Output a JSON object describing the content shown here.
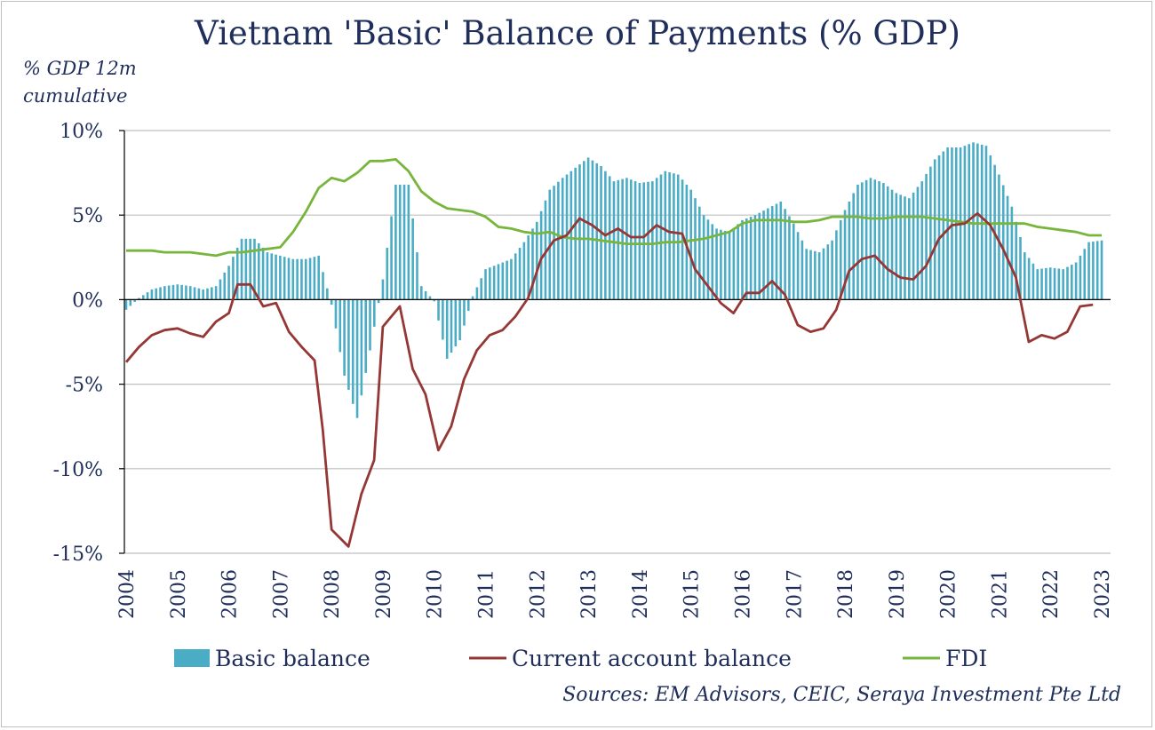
{
  "chart_data": {
    "type": "bar+line",
    "title": "Vietnam 'Basic' Balance of Payments (% GDP)",
    "ylabel": "% GDP 12m cumulative",
    "ylim": [
      -15,
      10
    ],
    "yticks": [
      10,
      5,
      0,
      -5,
      -10,
      -15
    ],
    "ytick_labels": [
      "10%",
      "5%",
      "0%",
      "-5%",
      "-10%",
      "-15%"
    ],
    "x_range": [
      2004.0,
      2023.0
    ],
    "xticks": [
      "2004",
      "2005",
      "2006",
      "2007",
      "2008",
      "2009",
      "2010",
      "2011",
      "2012",
      "2013",
      "2014",
      "2015",
      "2016",
      "2017",
      "2018",
      "2019",
      "2020",
      "2021",
      "2022",
      "2023"
    ],
    "grid": "horizontal",
    "legend_position": "bottom",
    "source": "Sources: EM Advisors, CEIC, Seraya Investment Pte Ltd",
    "series": [
      {
        "name": "Basic balance",
        "kind": "bar",
        "color": "#4bacc6",
        "points": [
          [
            2004.0,
            -0.6
          ],
          [
            2004.25,
            0.1
          ],
          [
            2004.5,
            0.6
          ],
          [
            2004.75,
            0.8
          ],
          [
            2005.0,
            0.9
          ],
          [
            2005.25,
            0.8
          ],
          [
            2005.5,
            0.6
          ],
          [
            2005.75,
            0.8
          ],
          [
            2006.0,
            2.0
          ],
          [
            2006.25,
            3.6
          ],
          [
            2006.5,
            3.6
          ],
          [
            2006.75,
            2.8
          ],
          [
            2007.0,
            2.6
          ],
          [
            2007.25,
            2.4
          ],
          [
            2007.5,
            2.4
          ],
          [
            2007.75,
            2.6
          ],
          [
            2008.0,
            -0.3
          ],
          [
            2008.25,
            -4.5
          ],
          [
            2008.5,
            -7.0
          ],
          [
            2008.75,
            -3.0
          ],
          [
            2009.0,
            1.2
          ],
          [
            2009.25,
            6.8
          ],
          [
            2009.5,
            6.8
          ],
          [
            2009.75,
            0.8
          ],
          [
            2010.0,
            -0.1
          ],
          [
            2010.25,
            -3.5
          ],
          [
            2010.5,
            -2.4
          ],
          [
            2010.75,
            0.2
          ],
          [
            2011.0,
            1.8
          ],
          [
            2011.25,
            2.1
          ],
          [
            2011.5,
            2.4
          ],
          [
            2011.75,
            3.4
          ],
          [
            2012.0,
            4.6
          ],
          [
            2012.25,
            6.5
          ],
          [
            2012.5,
            7.2
          ],
          [
            2012.75,
            7.8
          ],
          [
            2013.0,
            8.4
          ],
          [
            2013.25,
            7.9
          ],
          [
            2013.5,
            7.0
          ],
          [
            2013.75,
            7.2
          ],
          [
            2014.0,
            6.9
          ],
          [
            2014.25,
            7.0
          ],
          [
            2014.5,
            7.6
          ],
          [
            2014.75,
            7.4
          ],
          [
            2015.0,
            6.5
          ],
          [
            2015.25,
            5.0
          ],
          [
            2015.5,
            4.2
          ],
          [
            2015.75,
            4.0
          ],
          [
            2016.0,
            4.7
          ],
          [
            2016.25,
            5.0
          ],
          [
            2016.5,
            5.4
          ],
          [
            2016.75,
            5.8
          ],
          [
            2017.0,
            4.5
          ],
          [
            2017.25,
            3.0
          ],
          [
            2017.5,
            2.8
          ],
          [
            2017.75,
            3.5
          ],
          [
            2018.0,
            5.3
          ],
          [
            2018.25,
            6.8
          ],
          [
            2018.5,
            7.2
          ],
          [
            2018.75,
            6.9
          ],
          [
            2019.0,
            6.3
          ],
          [
            2019.25,
            6.0
          ],
          [
            2019.5,
            7.0
          ],
          [
            2019.75,
            8.3
          ],
          [
            2020.0,
            9.0
          ],
          [
            2020.25,
            9.0
          ],
          [
            2020.5,
            9.3
          ],
          [
            2020.75,
            9.1
          ],
          [
            2021.0,
            7.4
          ],
          [
            2021.25,
            5.5
          ],
          [
            2021.5,
            2.8
          ],
          [
            2021.75,
            1.8
          ],
          [
            2022.0,
            1.9
          ],
          [
            2022.25,
            1.8
          ],
          [
            2022.5,
            2.2
          ],
          [
            2022.75,
            3.4
          ],
          [
            2023.0,
            3.5
          ]
        ]
      },
      {
        "name": "Current account balance",
        "kind": "line",
        "color": "#953735",
        "points": [
          [
            2004.0,
            -3.7
          ],
          [
            2004.25,
            -2.8
          ],
          [
            2004.5,
            -2.1
          ],
          [
            2004.75,
            -1.8
          ],
          [
            2005.0,
            -1.7
          ],
          [
            2005.25,
            -2.0
          ],
          [
            2005.5,
            -2.2
          ],
          [
            2005.75,
            -1.3
          ],
          [
            2006.0,
            -0.8
          ],
          [
            2006.17,
            0.9
          ],
          [
            2006.42,
            0.9
          ],
          [
            2006.67,
            -0.4
          ],
          [
            2006.92,
            -0.2
          ],
          [
            2007.17,
            -1.9
          ],
          [
            2007.42,
            -2.8
          ],
          [
            2007.67,
            -3.6
          ],
          [
            2007.83,
            -7.7
          ],
          [
            2008.0,
            -13.6
          ],
          [
            2008.33,
            -14.6
          ],
          [
            2008.58,
            -11.5
          ],
          [
            2008.83,
            -9.5
          ],
          [
            2009.0,
            -1.6
          ],
          [
            2009.33,
            -0.4
          ],
          [
            2009.58,
            -4.1
          ],
          [
            2009.83,
            -5.6
          ],
          [
            2010.08,
            -8.9
          ],
          [
            2010.33,
            -7.5
          ],
          [
            2010.58,
            -4.7
          ],
          [
            2010.83,
            -3.0
          ],
          [
            2011.08,
            -2.1
          ],
          [
            2011.33,
            -1.8
          ],
          [
            2011.58,
            -1.0
          ],
          [
            2011.83,
            0.1
          ],
          [
            2012.08,
            2.4
          ],
          [
            2012.33,
            3.5
          ],
          [
            2012.58,
            3.8
          ],
          [
            2012.83,
            4.8
          ],
          [
            2013.08,
            4.4
          ],
          [
            2013.33,
            3.8
          ],
          [
            2013.58,
            4.2
          ],
          [
            2013.83,
            3.7
          ],
          [
            2014.08,
            3.7
          ],
          [
            2014.33,
            4.4
          ],
          [
            2014.58,
            4.0
          ],
          [
            2014.83,
            3.9
          ],
          [
            2015.08,
            1.8
          ],
          [
            2015.33,
            0.8
          ],
          [
            2015.58,
            -0.2
          ],
          [
            2015.83,
            -0.8
          ],
          [
            2016.08,
            0.4
          ],
          [
            2016.33,
            0.4
          ],
          [
            2016.58,
            1.1
          ],
          [
            2016.83,
            0.3
          ],
          [
            2017.08,
            -1.5
          ],
          [
            2017.33,
            -1.9
          ],
          [
            2017.58,
            -1.7
          ],
          [
            2017.83,
            -0.6
          ],
          [
            2018.08,
            1.7
          ],
          [
            2018.33,
            2.4
          ],
          [
            2018.58,
            2.6
          ],
          [
            2018.83,
            1.8
          ],
          [
            2019.08,
            1.3
          ],
          [
            2019.33,
            1.2
          ],
          [
            2019.58,
            2.0
          ],
          [
            2019.83,
            3.6
          ],
          [
            2020.08,
            4.4
          ],
          [
            2020.33,
            4.5
          ],
          [
            2020.58,
            5.1
          ],
          [
            2020.83,
            4.4
          ],
          [
            2021.08,
            3.0
          ],
          [
            2021.33,
            1.3
          ],
          [
            2021.58,
            -2.5
          ],
          [
            2021.83,
            -2.1
          ],
          [
            2022.08,
            -2.3
          ],
          [
            2022.33,
            -1.9
          ],
          [
            2022.58,
            -0.4
          ],
          [
            2022.83,
            -0.3
          ]
        ]
      },
      {
        "name": "FDI",
        "kind": "line",
        "color": "#77b53c",
        "points": [
          [
            2004.0,
            2.9
          ],
          [
            2004.25,
            2.9
          ],
          [
            2004.5,
            2.9
          ],
          [
            2004.75,
            2.8
          ],
          [
            2005.0,
            2.8
          ],
          [
            2005.25,
            2.8
          ],
          [
            2005.5,
            2.7
          ],
          [
            2005.75,
            2.6
          ],
          [
            2006.0,
            2.8
          ],
          [
            2006.25,
            2.8
          ],
          [
            2006.5,
            2.9
          ],
          [
            2006.75,
            3.0
          ],
          [
            2007.0,
            3.1
          ],
          [
            2007.25,
            4.0
          ],
          [
            2007.5,
            5.2
          ],
          [
            2007.75,
            6.6
          ],
          [
            2008.0,
            7.2
          ],
          [
            2008.25,
            7.0
          ],
          [
            2008.5,
            7.5
          ],
          [
            2008.75,
            8.2
          ],
          [
            2009.0,
            8.2
          ],
          [
            2009.25,
            8.3
          ],
          [
            2009.5,
            7.6
          ],
          [
            2009.75,
            6.4
          ],
          [
            2010.0,
            5.8
          ],
          [
            2010.25,
            5.4
          ],
          [
            2010.5,
            5.3
          ],
          [
            2010.75,
            5.2
          ],
          [
            2011.0,
            4.9
          ],
          [
            2011.25,
            4.3
          ],
          [
            2011.5,
            4.2
          ],
          [
            2011.75,
            4.0
          ],
          [
            2012.0,
            3.9
          ],
          [
            2012.25,
            4.0
          ],
          [
            2012.5,
            3.7
          ],
          [
            2012.75,
            3.6
          ],
          [
            2013.0,
            3.6
          ],
          [
            2013.25,
            3.5
          ],
          [
            2013.5,
            3.4
          ],
          [
            2013.75,
            3.3
          ],
          [
            2014.0,
            3.3
          ],
          [
            2014.25,
            3.3
          ],
          [
            2014.5,
            3.4
          ],
          [
            2014.75,
            3.4
          ],
          [
            2015.0,
            3.5
          ],
          [
            2015.25,
            3.6
          ],
          [
            2015.5,
            3.8
          ],
          [
            2015.75,
            4.0
          ],
          [
            2016.0,
            4.5
          ],
          [
            2016.25,
            4.7
          ],
          [
            2016.5,
            4.7
          ],
          [
            2016.75,
            4.7
          ],
          [
            2017.0,
            4.6
          ],
          [
            2017.25,
            4.6
          ],
          [
            2017.5,
            4.7
          ],
          [
            2017.75,
            4.9
          ],
          [
            2018.0,
            4.9
          ],
          [
            2018.25,
            4.9
          ],
          [
            2018.5,
            4.8
          ],
          [
            2018.75,
            4.8
          ],
          [
            2019.0,
            4.9
          ],
          [
            2019.25,
            4.9
          ],
          [
            2019.5,
            4.9
          ],
          [
            2019.75,
            4.8
          ],
          [
            2020.0,
            4.7
          ],
          [
            2020.25,
            4.6
          ],
          [
            2020.5,
            4.5
          ],
          [
            2020.75,
            4.5
          ],
          [
            2021.0,
            4.5
          ],
          [
            2021.25,
            4.5
          ],
          [
            2021.5,
            4.5
          ],
          [
            2021.75,
            4.3
          ],
          [
            2022.0,
            4.2
          ],
          [
            2022.25,
            4.1
          ],
          [
            2022.5,
            4.0
          ],
          [
            2022.75,
            3.8
          ],
          [
            2023.0,
            3.8
          ]
        ]
      }
    ]
  }
}
